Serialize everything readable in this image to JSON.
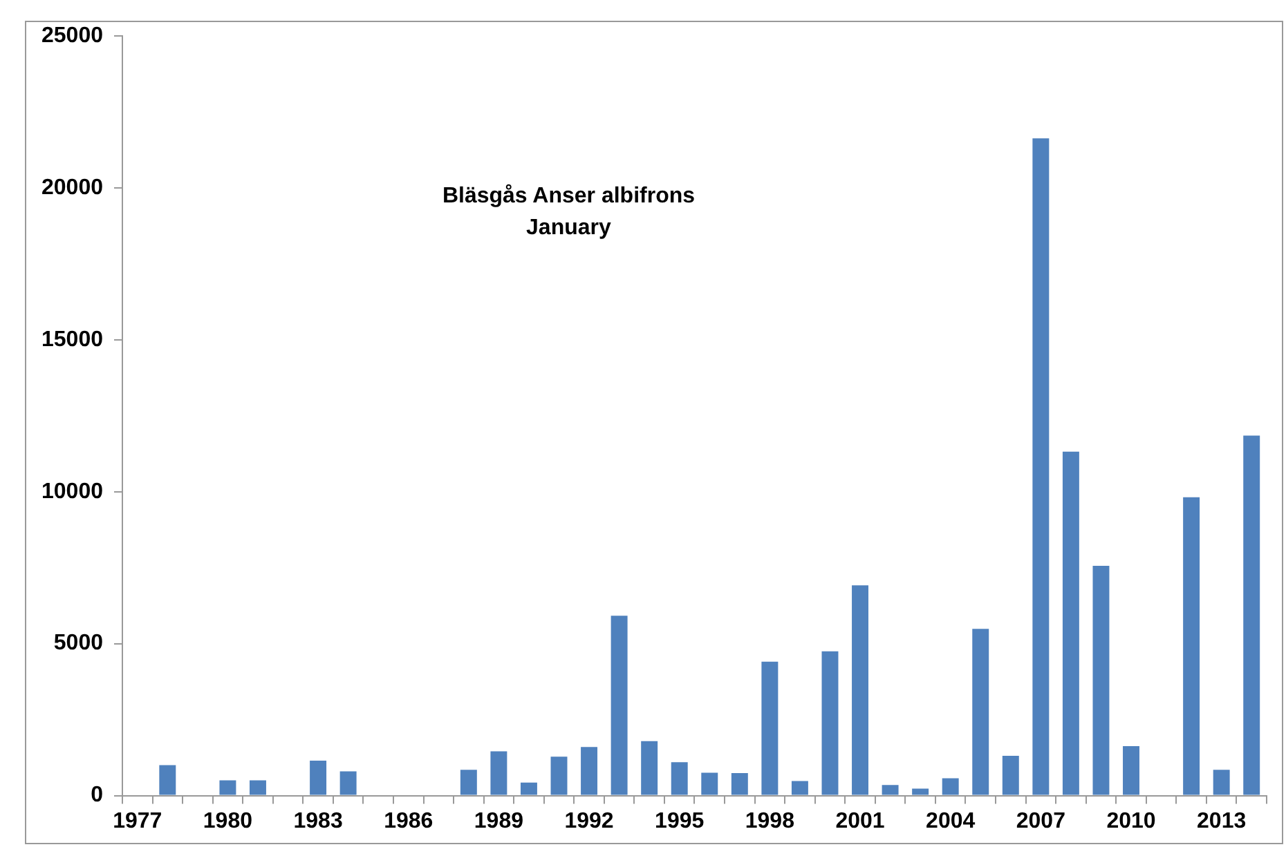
{
  "chart_data": {
    "type": "bar",
    "title": "Bläsgås Anser albifrons",
    "subtitle": "January",
    "categories": [
      "1977",
      null,
      null,
      "1980",
      null,
      null,
      "1983",
      null,
      null,
      "1986",
      null,
      null,
      "1989",
      null,
      null,
      "1992",
      null,
      null,
      "1995",
      null,
      null,
      "1998",
      null,
      null,
      "2001",
      null,
      null,
      "2004",
      null,
      null,
      "2007",
      null,
      null,
      "2010",
      null,
      null,
      "2013",
      null
    ],
    "values": [
      0,
      1000,
      0,
      500,
      500,
      0,
      1150,
      800,
      0,
      0,
      0,
      850,
      1460,
      430,
      1280,
      1600,
      5920,
      1790,
      1100,
      750,
      740,
      4410,
      480,
      4750,
      6920,
      350,
      230,
      570,
      5490,
      1310,
      21630,
      11320,
      7560,
      1630,
      null,
      9820,
      850,
      11850
    ],
    "color": "#4f81bd",
    "ylim": [
      0,
      25000
    ],
    "yticks": [
      0,
      5000,
      10000,
      15000,
      20000,
      25000
    ],
    "grid": false,
    "legend": false
  }
}
